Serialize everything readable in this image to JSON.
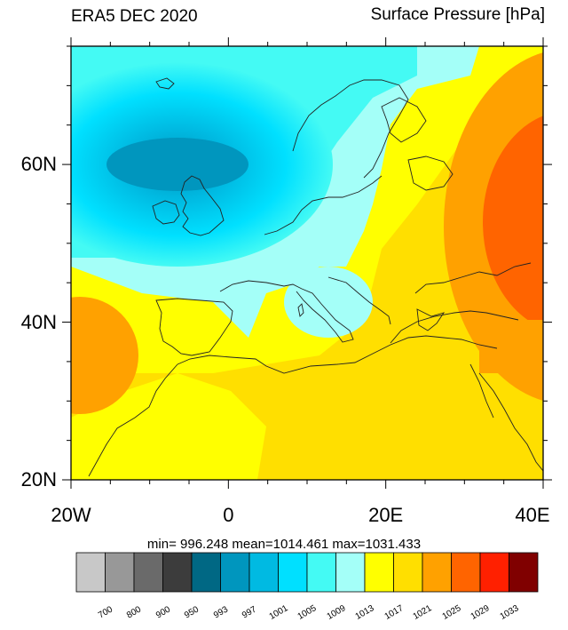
{
  "header": {
    "title_left": "ERA5 DEC 2020",
    "title_right": "Surface Pressure [hPa]"
  },
  "map": {
    "projection": "cylindrical-equidistant",
    "lon_range": [
      -20,
      40
    ],
    "lat_range": [
      20,
      75
    ],
    "lat_ticks": [
      {
        "value": 60,
        "label": "60N"
      },
      {
        "value": 40,
        "label": "40N"
      },
      {
        "value": 20,
        "label": "20N"
      }
    ],
    "lon_ticks": [
      {
        "value": -20,
        "label": "20W"
      },
      {
        "value": 0,
        "label": "0"
      },
      {
        "value": 20,
        "label": "20E"
      },
      {
        "value": 40,
        "label": "40E"
      }
    ],
    "features": [
      "low-pressure-center-north-atlantic",
      "high-pressure-center-western-russia",
      "high-pressure-azores",
      "coastlines"
    ]
  },
  "stats": {
    "text": "min= 996.248  mean=1014.461  max=1031.433"
  },
  "colorbar": {
    "colors": [
      "#c8c8c8",
      "#989898",
      "#6a6a6a",
      "#3c3c3c",
      "#006884",
      "#0096be",
      "#00bae2",
      "#00e0ff",
      "#44faf4",
      "#a4fff8",
      "#ffff00",
      "#ffdf00",
      "#ffa100",
      "#ff6400",
      "#ff2000",
      "#800000"
    ],
    "labels": [
      "700",
      "800",
      "900",
      "950",
      "993",
      "997",
      "1001",
      "1005",
      "1009",
      "1013",
      "1017",
      "1021",
      "1025",
      "1029",
      "1033"
    ]
  }
}
